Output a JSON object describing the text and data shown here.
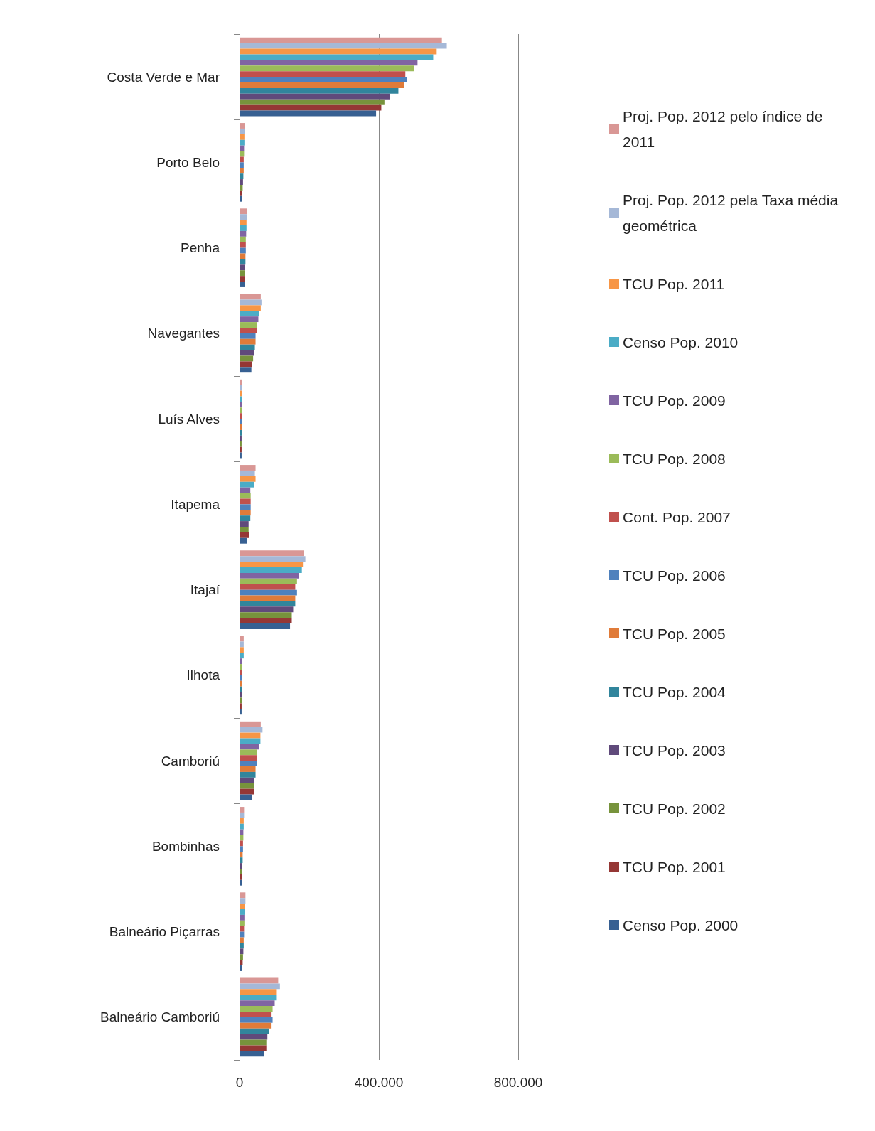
{
  "chart_data": {
    "type": "bar",
    "orientation": "horizontal",
    "categories": [
      "Costa Verde e Mar",
      "Porto Belo",
      "Penha",
      "Navegantes",
      "Luís Alves",
      "Itapema",
      "Itajaí",
      "Ilhota",
      "Camboriú",
      "Bombinhas",
      "Balneário Piçarras",
      "Balneário Camboriú"
    ],
    "series": [
      {
        "name": "Proj. Pop. 2012 pelo índice de 2011",
        "color": "#d99795",
        "values": [
          581000,
          15000,
          21000,
          61000,
          8000,
          46000,
          184000,
          12000,
          61000,
          13000,
          17000,
          111000
        ]
      },
      {
        "name": "Proj. Pop. 2012 pela Taxa média geométrica",
        "color": "#a5b8d7",
        "values": [
          595000,
          15000,
          21000,
          63000,
          8000,
          44000,
          189000,
          12000,
          66000,
          13000,
          17000,
          116000
        ]
      },
      {
        "name": "TCU Pop. 2011",
        "color": "#f79646",
        "values": [
          566000,
          14000,
          20000,
          61000,
          8000,
          46000,
          182000,
          12000,
          60000,
          12000,
          16000,
          105000
        ]
      },
      {
        "name": "Censo Pop. 2010",
        "color": "#4bacc6",
        "values": [
          556000,
          14000,
          20000,
          56000,
          8000,
          41000,
          179000,
          12000,
          60000,
          12000,
          16000,
          105000
        ]
      },
      {
        "name": "TCU Pop. 2009",
        "color": "#8064a2",
        "values": [
          511000,
          13000,
          19000,
          54000,
          7000,
          31000,
          170000,
          8000,
          56000,
          11000,
          14000,
          101000
        ]
      },
      {
        "name": "TCU Pop. 2008",
        "color": "#9bbb59",
        "values": [
          501000,
          13000,
          18000,
          51000,
          7000,
          32000,
          165000,
          8000,
          51000,
          11000,
          14000,
          95000
        ]
      },
      {
        "name": "Cont. Pop. 2007",
        "color": "#c0504d",
        "values": [
          476000,
          12000,
          18000,
          50000,
          7000,
          32000,
          160000,
          8000,
          51000,
          10000,
          13000,
          90000
        ]
      },
      {
        "name": "TCU Pop. 2006",
        "color": "#4f81bd",
        "values": [
          481000,
          12000,
          18000,
          46000,
          7000,
          32000,
          165000,
          8000,
          51000,
          10000,
          13000,
          95000
        ]
      },
      {
        "name": "TCU Pop. 2005",
        "color": "#e07b39",
        "values": [
          473000,
          12000,
          17000,
          46000,
          7000,
          32000,
          160000,
          7000,
          46000,
          9000,
          12000,
          90000
        ]
      },
      {
        "name": "TCU Pop. 2004",
        "color": "#31859c",
        "values": [
          456000,
          11000,
          17000,
          44000,
          7000,
          31000,
          160000,
          7000,
          46000,
          9000,
          12000,
          85000
        ]
      },
      {
        "name": "TCU Pop. 2003",
        "color": "#604a7b",
        "values": [
          432000,
          10000,
          16000,
          41000,
          6000,
          26000,
          154000,
          7000,
          41000,
          8000,
          11000,
          80000
        ]
      },
      {
        "name": "TCU Pop. 2002",
        "color": "#77933c",
        "values": [
          416000,
          9000,
          16000,
          39000,
          6000,
          26000,
          150000,
          7000,
          41000,
          8000,
          10000,
          77000
        ]
      },
      {
        "name": "TCU Pop. 2001",
        "color": "#953735",
        "values": [
          407000,
          8000,
          15000,
          36000,
          6000,
          27000,
          150000,
          6000,
          41000,
          7000,
          9000,
          77000
        ]
      },
      {
        "name": "Censo Pop. 2000",
        "color": "#376092",
        "values": [
          392000,
          7000,
          15000,
          34000,
          6000,
          22000,
          145000,
          6000,
          36000,
          7000,
          8000,
          71000
        ]
      }
    ],
    "xlim": [
      0,
      800000
    ],
    "xticks": [
      0,
      {
        "value": 400000,
        "label": "400.000"
      },
      {
        "value": 800000,
        "label": "800.000"
      }
    ],
    "grid": "x",
    "legend": "right"
  }
}
